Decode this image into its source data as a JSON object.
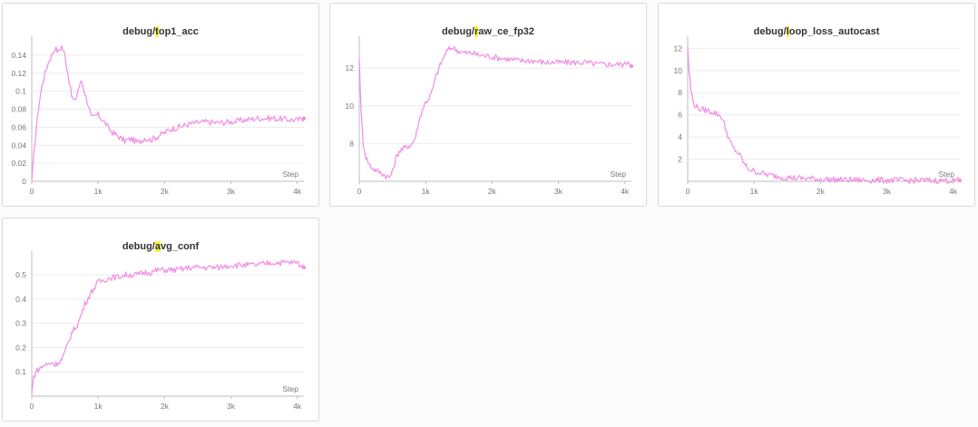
{
  "style": {
    "line_color": "#f28ce4",
    "highlight_color": "#f7f53c"
  },
  "chart_data": [
    {
      "type": "line",
      "title_prefix": "debug/",
      "title_hl": "t",
      "title_rest": "op1_acc",
      "xlabel": "Step",
      "xlim": [
        0,
        4100
      ],
      "ylim": [
        0,
        0.155
      ],
      "x_ticks": [
        0,
        1000,
        2000,
        3000,
        4000
      ],
      "x_tick_labels": [
        "0",
        "1k",
        "2k",
        "3k",
        "4k"
      ],
      "y_ticks": [
        0,
        0.02,
        0.04,
        0.06,
        0.08,
        0.1,
        0.12,
        0.14
      ],
      "y_tick_labels": [
        "0",
        "0.02",
        "0.04",
        "0.06",
        "0.08",
        "0.1",
        "0.12",
        "0.14"
      ],
      "series": [
        {
          "x": [
            0,
            50,
            100,
            150,
            200,
            250,
            300,
            350,
            400,
            450,
            500,
            550,
            600,
            650,
            700,
            750,
            800,
            850,
            900,
            1000,
            1100,
            1200,
            1300,
            1400,
            1500,
            1600,
            1700,
            1800,
            1900,
            2000,
            2100,
            2200,
            2300,
            2400,
            2600,
            2800,
            3000,
            3200,
            3400,
            3600,
            3800,
            4000,
            4100
          ],
          "y": [
            0,
            0.045,
            0.08,
            0.105,
            0.12,
            0.132,
            0.14,
            0.148,
            0.144,
            0.15,
            0.14,
            0.118,
            0.095,
            0.088,
            0.102,
            0.112,
            0.098,
            0.085,
            0.07,
            0.074,
            0.065,
            0.055,
            0.05,
            0.045,
            0.047,
            0.043,
            0.048,
            0.046,
            0.05,
            0.054,
            0.058,
            0.06,
            0.062,
            0.064,
            0.066,
            0.065,
            0.066,
            0.068,
            0.07,
            0.07,
            0.069,
            0.068,
            0.07
          ]
        }
      ]
    },
    {
      "type": "line",
      "title_prefix": "debug/",
      "title_hl": "r",
      "title_rest": "aw_ce_fp32",
      "xlabel": "Step",
      "xlim": [
        0,
        4100
      ],
      "ylim": [
        6.0,
        13.4
      ],
      "x_ticks": [
        0,
        1000,
        2000,
        3000,
        4000
      ],
      "x_tick_labels": [
        "0",
        "1k",
        "2k",
        "3k",
        "4k"
      ],
      "y_ticks": [
        8,
        10,
        12
      ],
      "y_tick_labels": [
        "8",
        "10",
        "12"
      ],
      "series": [
        {
          "x": [
            0,
            30,
            60,
            100,
            150,
            200,
            300,
            400,
            450,
            500,
            550,
            600,
            650,
            700,
            750,
            800,
            850,
            900,
            950,
            1000,
            1050,
            1100,
            1150,
            1200,
            1250,
            1300,
            1350,
            1400,
            1500,
            1600,
            1700,
            1800,
            2000,
            2200,
            2400,
            2600,
            2800,
            3000,
            3200,
            3400,
            3600,
            3800,
            4000,
            4050,
            4100
          ],
          "y": [
            12.5,
            9.5,
            8.0,
            7.3,
            6.9,
            6.7,
            6.5,
            6.3,
            6.2,
            6.5,
            7.2,
            7.6,
            7.7,
            7.8,
            7.9,
            8.0,
            8.4,
            9.2,
            9.8,
            10.2,
            10.4,
            10.8,
            11.5,
            12.0,
            12.4,
            12.8,
            13.0,
            13.1,
            12.9,
            12.8,
            12.8,
            12.7,
            12.6,
            12.5,
            12.4,
            12.4,
            12.3,
            12.3,
            12.3,
            12.3,
            12.2,
            12.2,
            12.2,
            12.4,
            12.1
          ]
        }
      ]
    },
    {
      "type": "line",
      "title_prefix": "debug/",
      "title_hl": "l",
      "title_rest": "oop_loss_autocast",
      "xlabel": "Step",
      "xlim": [
        0,
        4100
      ],
      "ylim": [
        0,
        12.6
      ],
      "x_ticks": [
        0,
        1000,
        2000,
        3000,
        4000
      ],
      "x_tick_labels": [
        "0",
        "1k",
        "2k",
        "3k",
        "4k"
      ],
      "y_ticks": [
        2,
        4,
        6,
        8,
        10,
        12
      ],
      "y_tick_labels": [
        "2",
        "4",
        "6",
        "8",
        "10",
        "12"
      ],
      "series": [
        {
          "x": [
            0,
            20,
            50,
            80,
            120,
            160,
            200,
            300,
            400,
            500,
            550,
            600,
            650,
            700,
            750,
            800,
            850,
            900,
            1000,
            1200,
            1400,
            1600,
            1800,
            2000,
            2200,
            2500,
            3000,
            3500,
            4000,
            4100
          ],
          "y": [
            12.2,
            10.0,
            8.2,
            7.2,
            6.8,
            6.6,
            6.5,
            6.4,
            6.2,
            5.9,
            5.2,
            4.2,
            3.4,
            2.9,
            2.6,
            2.2,
            1.6,
            1.2,
            0.9,
            0.6,
            0.4,
            0.3,
            0.25,
            0.2,
            0.15,
            0.12,
            0.1,
            0.08,
            0.07,
            0.07
          ]
        }
      ]
    },
    {
      "type": "line",
      "title_prefix": "debug/",
      "title_hl": "a",
      "title_rest": "vg_conf",
      "xlabel": "Step",
      "xlim": [
        0,
        4100
      ],
      "ylim": [
        0,
        0.575
      ],
      "x_ticks": [
        0,
        1000,
        2000,
        3000,
        4000
      ],
      "x_tick_labels": [
        "0",
        "1k",
        "2k",
        "3k",
        "4k"
      ],
      "y_ticks": [
        0.1,
        0.2,
        0.3,
        0.4,
        0.5
      ],
      "y_tick_labels": [
        "0.1",
        "0.2",
        "0.3",
        "0.4",
        "0.5"
      ],
      "series": [
        {
          "x": [
            0,
            30,
            60,
            100,
            150,
            200,
            250,
            300,
            350,
            400,
            450,
            500,
            550,
            600,
            700,
            800,
            900,
            1000,
            1100,
            1200,
            1300,
            1400,
            1500,
            1600,
            1700,
            1800,
            1900,
            2000,
            2200,
            2400,
            2600,
            2800,
            3000,
            3200,
            3400,
            3600,
            3800,
            4000,
            4100
          ],
          "y": [
            0.01,
            0.08,
            0.1,
            0.11,
            0.12,
            0.13,
            0.13,
            0.14,
            0.13,
            0.14,
            0.15,
            0.18,
            0.22,
            0.26,
            0.3,
            0.38,
            0.43,
            0.47,
            0.48,
            0.49,
            0.49,
            0.5,
            0.5,
            0.5,
            0.51,
            0.51,
            0.52,
            0.52,
            0.52,
            0.53,
            0.53,
            0.53,
            0.54,
            0.54,
            0.54,
            0.55,
            0.55,
            0.55,
            0.53
          ]
        }
      ]
    }
  ]
}
